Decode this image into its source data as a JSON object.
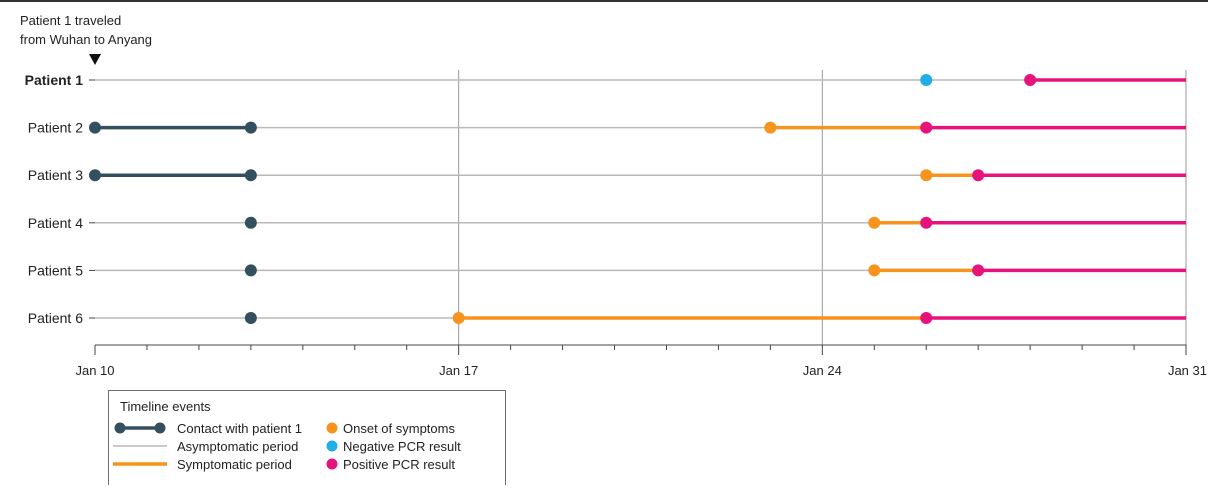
{
  "annotation": {
    "line1": "Patient 1 traveled",
    "line2": "from Wuhan to Anyang",
    "x_date": 10
  },
  "colors": {
    "contact": "#34505e",
    "asymptomatic": "#b9b9b9",
    "symptomatic": "#f7941d",
    "onset": "#f7941d",
    "negative_pcr": "#20aee6",
    "positive_pcr": "#e6137d",
    "gridline": "#9a9a9a",
    "axis": "#444444",
    "top_border": "#333333"
  },
  "chart_data": {
    "type": "timeline",
    "title": "",
    "xlabel": "",
    "ylabel": "",
    "x_unit": "day of January",
    "xlim": [
      10,
      31
    ],
    "x_ticks": [
      {
        "value": 10,
        "label": "Jan 10"
      },
      {
        "value": 17,
        "label": "Jan 17"
      },
      {
        "value": 24,
        "label": "Jan 24"
      },
      {
        "value": 31,
        "label": "Jan 31"
      }
    ],
    "grid_x": [
      17,
      24,
      31
    ],
    "patients": [
      {
        "label": "Patient 1",
        "bold": true,
        "contact": null,
        "onset": null,
        "negative_pcr": 26,
        "positive_pcr": 28
      },
      {
        "label": "Patient 2",
        "bold": false,
        "contact": [
          10,
          13
        ],
        "onset": 23,
        "negative_pcr": null,
        "positive_pcr": 26
      },
      {
        "label": "Patient 3",
        "bold": false,
        "contact": [
          10,
          13
        ],
        "onset": 26,
        "negative_pcr": null,
        "positive_pcr": 27
      },
      {
        "label": "Patient 4",
        "bold": false,
        "contact": [
          13,
          13
        ],
        "onset": 25,
        "negative_pcr": null,
        "positive_pcr": 26
      },
      {
        "label": "Patient 5",
        "bold": false,
        "contact": [
          13,
          13
        ],
        "onset": 25,
        "negative_pcr": null,
        "positive_pcr": 27
      },
      {
        "label": "Patient 6",
        "bold": false,
        "contact": [
          13,
          13
        ],
        "onset": 17,
        "negative_pcr": null,
        "positive_pcr": 26
      }
    ]
  },
  "legend": {
    "title": "Timeline events",
    "placement": "bottom-left",
    "items": [
      {
        "key": "contact",
        "label": "Contact with patient 1"
      },
      {
        "key": "asymptomatic",
        "label": "Asymptomatic period"
      },
      {
        "key": "symptomatic",
        "label": "Symptomatic period"
      },
      {
        "key": "onset",
        "label": "Onset of symptoms"
      },
      {
        "key": "negative_pcr",
        "label": "Negative PCR result"
      },
      {
        "key": "positive_pcr",
        "label": "Positive PCR result"
      }
    ]
  }
}
